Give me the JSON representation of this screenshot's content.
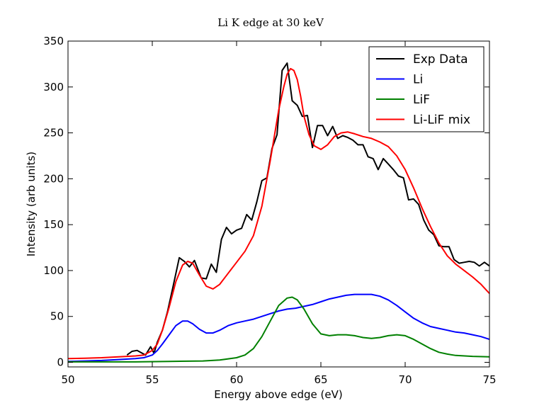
{
  "chart_data": {
    "type": "line",
    "title": "Li K edge at 30 keV",
    "xlabel": "Energy above edge (eV)",
    "ylabel": "Intensity (arb units)",
    "xlim": [
      50,
      75
    ],
    "ylim": [
      -5,
      350
    ],
    "xticks": [
      "50",
      "55",
      "60",
      "65",
      "70",
      "75"
    ],
    "xtick_values": [
      50,
      55,
      60,
      65,
      70,
      75
    ],
    "yticks": [
      "0",
      "50",
      "100",
      "150",
      "200",
      "250",
      "300",
      "350"
    ],
    "ytick_values": [
      0,
      50,
      100,
      150,
      200,
      250,
      300,
      350
    ],
    "grid": false,
    "legend_position": "top-right",
    "series": [
      {
        "name": "Exp Data",
        "color": "#000000",
        "x": [
          53.5,
          53.8,
          54.1,
          54.4,
          54.6,
          54.9,
          55.1,
          55.3,
          55.6,
          55.9,
          56.2,
          56.6,
          56.9,
          57.2,
          57.5,
          57.9,
          58.2,
          58.5,
          58.8,
          59.1,
          59.4,
          59.7,
          60.0,
          60.3,
          60.6,
          60.9,
          61.2,
          61.5,
          61.8,
          62.1,
          62.4,
          62.7,
          63.0,
          63.3,
          63.6,
          63.9,
          64.2,
          64.5,
          64.8,
          65.1,
          65.4,
          65.7,
          66.0,
          66.3,
          66.6,
          66.9,
          67.2,
          67.5,
          67.8,
          68.1,
          68.4,
          68.7,
          69.0,
          69.3,
          69.6,
          69.9,
          70.2,
          70.5,
          70.8,
          71.1,
          71.4,
          71.7,
          72.0,
          72.3,
          72.6,
          72.9,
          73.2,
          73.5,
          73.8,
          74.1,
          74.4,
          74.7,
          75.0
        ],
        "y": [
          8,
          12,
          13,
          10,
          8,
          17,
          10,
          22,
          35,
          55,
          80,
          114,
          110,
          104,
          111,
          92,
          91,
          107,
          98,
          134,
          147,
          140,
          144,
          146,
          161,
          155,
          175,
          198,
          201,
          233,
          248,
          318,
          326,
          285,
          280,
          268,
          269,
          234,
          258,
          258,
          247,
          257,
          244,
          247,
          245,
          242,
          237,
          237,
          224,
          222,
          210,
          222,
          216,
          210,
          203,
          201,
          177,
          178,
          172,
          155,
          144,
          139,
          127,
          126,
          126,
          112,
          108,
          109,
          110,
          109,
          105,
          109,
          105
        ]
      },
      {
        "name": "Li",
        "color": "#0000ff",
        "x": [
          50,
          51,
          52,
          53,
          54,
          54.5,
          55,
          55.3,
          55.6,
          56,
          56.4,
          56.8,
          57.1,
          57.4,
          57.8,
          58.2,
          58.6,
          59.0,
          59.5,
          60.0,
          60.5,
          61.0,
          61.5,
          62.0,
          62.5,
          63.0,
          63.5,
          64.0,
          64.5,
          65.0,
          65.5,
          66.0,
          66.5,
          67.0,
          67.5,
          68.0,
          68.5,
          69.0,
          69.5,
          70.0,
          70.5,
          71.0,
          71.5,
          72.0,
          72.5,
          73.0,
          73.5,
          74.0,
          74.5,
          75.0
        ],
        "y": [
          1,
          1.5,
          2,
          3,
          4,
          5,
          8,
          13,
          20,
          30,
          40,
          45,
          45,
          42,
          36,
          32,
          32,
          35,
          40,
          43,
          45,
          47,
          50,
          53,
          56,
          58,
          59,
          61,
          63,
          66,
          69,
          71,
          73,
          74,
          74,
          74,
          72,
          68,
          62,
          55,
          48,
          43,
          39,
          37,
          35,
          33,
          32,
          30,
          28,
          25
        ]
      },
      {
        "name": "LiF",
        "color": "#008000",
        "x": [
          50,
          52,
          54,
          56,
          58,
          59,
          60,
          60.5,
          61,
          61.5,
          62,
          62.5,
          63,
          63.3,
          63.6,
          64,
          64.5,
          65,
          65.5,
          66,
          66.5,
          67,
          67.5,
          68,
          68.5,
          69,
          69.5,
          70,
          70.5,
          71,
          71.5,
          72,
          72.5,
          73,
          74,
          75
        ],
        "y": [
          0.5,
          0.5,
          0.5,
          1,
          1.5,
          2.5,
          5,
          8,
          15,
          28,
          45,
          62,
          70,
          71,
          68,
          58,
          42,
          31,
          29,
          30,
          30,
          29,
          27,
          26,
          27,
          29,
          30,
          29,
          25,
          20,
          15,
          11,
          9,
          7.5,
          6.5,
          6
        ]
      },
      {
        "name": "Li-LiF mix",
        "color": "#ff0000",
        "x": [
          50,
          51,
          52,
          53,
          54,
          54.5,
          55,
          55.3,
          55.6,
          56,
          56.4,
          56.8,
          57.1,
          57.4,
          57.8,
          58.2,
          58.6,
          59.0,
          59.5,
          60.0,
          60.5,
          61.0,
          61.5,
          62.0,
          62.5,
          62.8,
          63.0,
          63.2,
          63.4,
          63.6,
          63.8,
          64.0,
          64.3,
          64.6,
          65.0,
          65.4,
          65.8,
          66.2,
          66.6,
          67.0,
          67.5,
          68.0,
          68.5,
          69.0,
          69.5,
          70.0,
          70.5,
          71.0,
          71.5,
          72.0,
          72.5,
          73.0,
          73.5,
          74.0,
          74.5,
          75.0
        ],
        "y": [
          4,
          4.5,
          5,
          6,
          7,
          8,
          13,
          20,
          35,
          60,
          88,
          106,
          110,
          108,
          95,
          83,
          80,
          85,
          97,
          109,
          121,
          138,
          170,
          220,
          275,
          300,
          314,
          320,
          318,
          308,
          290,
          268,
          248,
          236,
          232,
          237,
          246,
          250,
          251,
          249,
          246,
          244,
          240,
          235,
          225,
          210,
          190,
          168,
          148,
          130,
          116,
          107,
          100,
          93,
          85,
          75
        ]
      }
    ]
  }
}
